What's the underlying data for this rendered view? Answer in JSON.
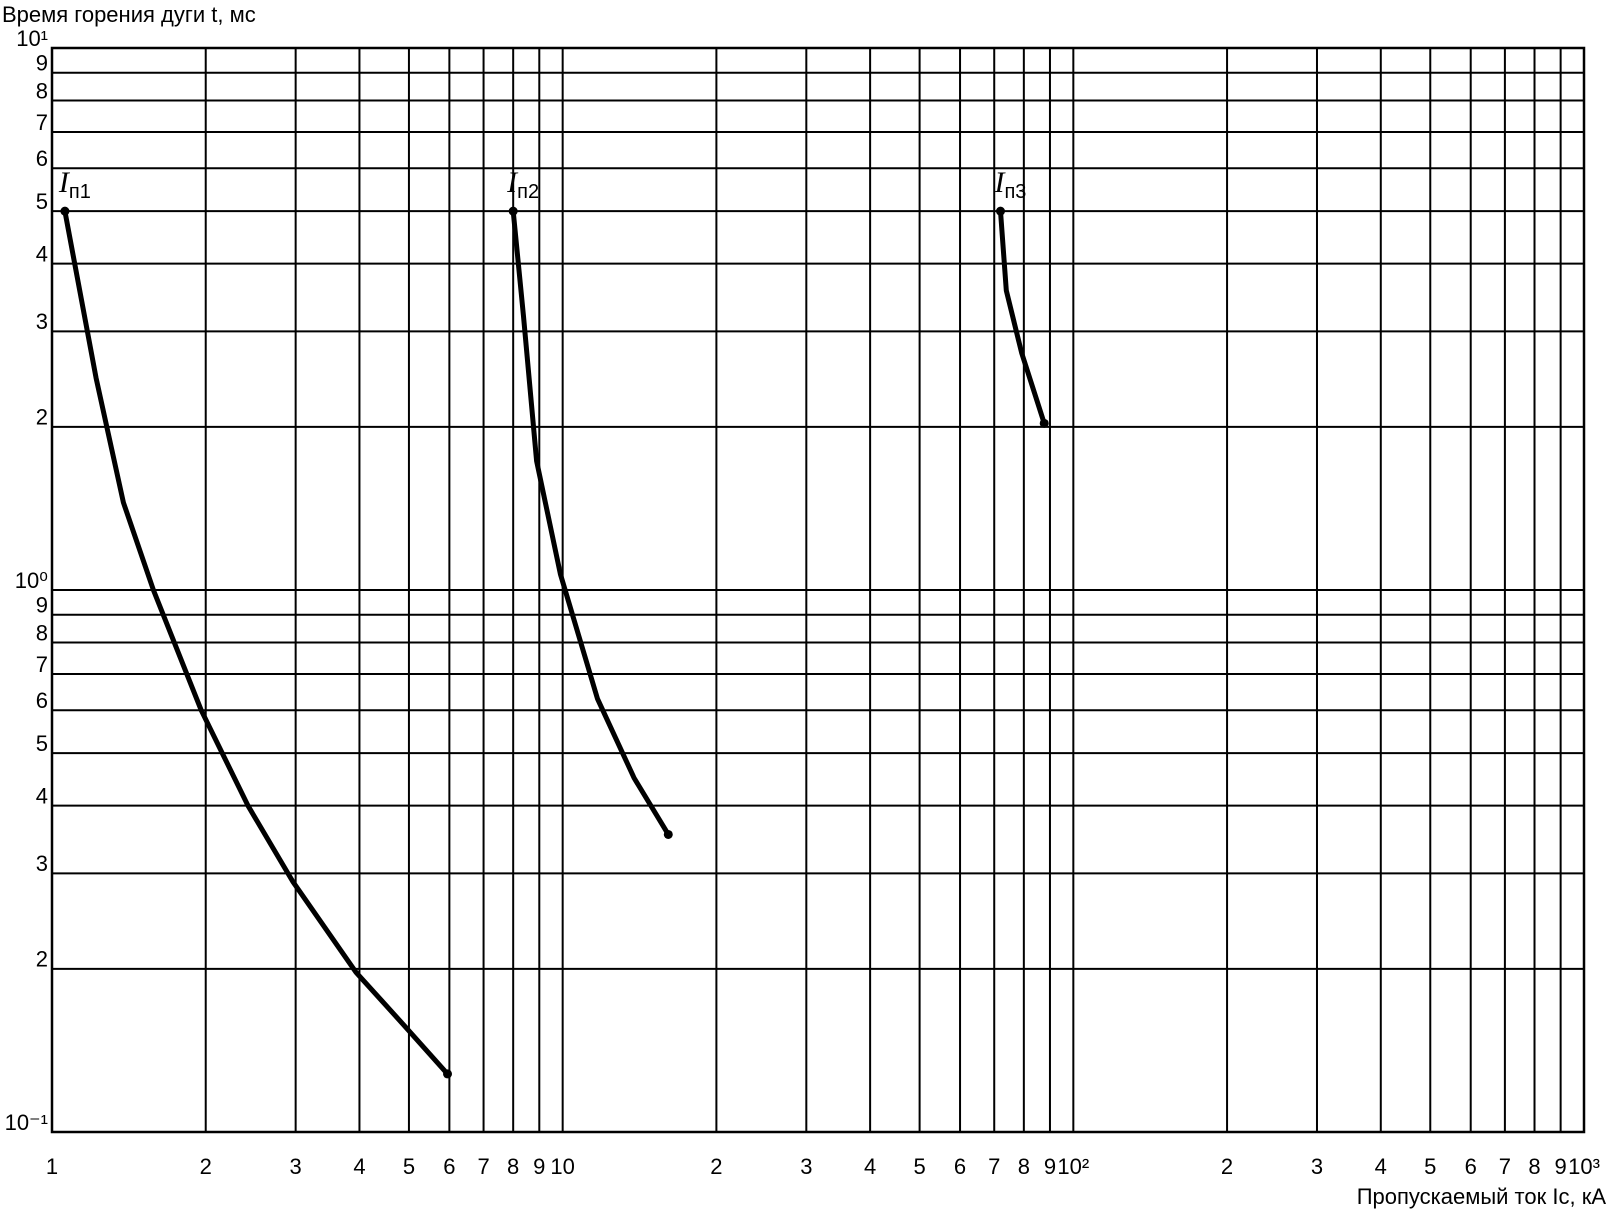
{
  "chart_data": {
    "type": "line",
    "y_label": "Время горения дуги t, мс",
    "x_label": "Пропускаемый ток Iс, кА",
    "log_x": true,
    "log_y": true,
    "grid": true,
    "color": "#000000",
    "xlim": [
      1,
      1000
    ],
    "ylim": [
      0.1,
      10
    ],
    "xticks": [
      1,
      2,
      3,
      4,
      5,
      6,
      7,
      8,
      9,
      10,
      {
        "value": 20,
        "label": "2"
      },
      {
        "value": 30,
        "label": "3"
      },
      {
        "value": 40,
        "label": "4"
      },
      {
        "value": 50,
        "label": "5"
      },
      {
        "value": 60,
        "label": "6"
      },
      {
        "value": 70,
        "label": "7"
      },
      {
        "value": 80,
        "label": "8"
      },
      {
        "value": 90,
        "label": "9"
      },
      {
        "value": 100,
        "label": "10²"
      },
      {
        "value": 200,
        "label": "2"
      },
      {
        "value": 300,
        "label": "3"
      },
      {
        "value": 400,
        "label": "4"
      },
      {
        "value": 500,
        "label": "5"
      },
      {
        "value": 600,
        "label": "6"
      },
      {
        "value": 700,
        "label": "7"
      },
      {
        "value": 800,
        "label": "8"
      },
      {
        "value": 900,
        "label": "9"
      },
      {
        "value": 1000,
        "label": "10³"
      }
    ],
    "yticks": [
      {
        "value": 0.1,
        "label": "10⁻¹"
      },
      {
        "value": 0.2,
        "label": "2"
      },
      {
        "value": 0.3,
        "label": "3"
      },
      {
        "value": 0.4,
        "label": "4"
      },
      {
        "value": 0.5,
        "label": "5"
      },
      {
        "value": 0.6,
        "label": "6"
      },
      {
        "value": 0.7,
        "label": "7"
      },
      {
        "value": 0.8,
        "label": "8"
      },
      {
        "value": 0.9,
        "label": "9"
      },
      {
        "value": 1,
        "label": "10⁰"
      },
      2,
      3,
      4,
      5,
      6,
      7,
      8,
      9,
      {
        "value": 10,
        "label": "10¹"
      }
    ],
    "series": [
      {
        "name": "Iп1",
        "color": "#000000",
        "x": [
          1.06,
          1.22,
          1.38,
          1.58,
          1.96,
          2.42,
          2.96,
          3.94,
          4.87,
          5.95
        ],
        "values": [
          5.0,
          2.46,
          1.45,
          1.0,
          0.6,
          0.4,
          0.29,
          0.197,
          0.158,
          0.128
        ]
      },
      {
        "name": "Iп2",
        "color": "#000000",
        "x": [
          8.0,
          8.38,
          8.89,
          9.9,
          11.7,
          13.8,
          16.1
        ],
        "values": [
          5.0,
          3.2,
          1.73,
          1.07,
          0.63,
          0.45,
          0.354
        ]
      },
      {
        "name": "Iп3",
        "color": "#000000",
        "x": [
          72,
          73.9,
          79.2,
          87.7
        ],
        "values": [
          5.0,
          3.57,
          2.74,
          2.03
        ]
      }
    ]
  }
}
